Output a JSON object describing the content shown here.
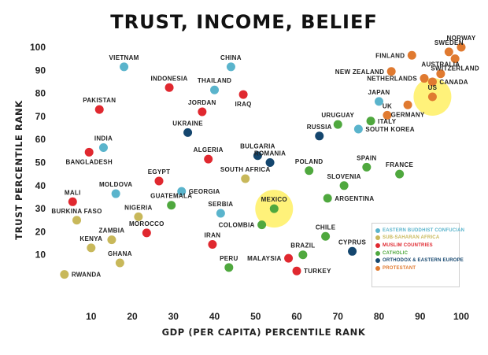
{
  "chart_data": {
    "type": "scatter",
    "title": "TRUST, INCOME, BELIEF",
    "xlabel": "GDP (PER CAPITA) PERCENTILE RANK",
    "ylabel": "TRUST PERCENTILE RANK",
    "xlim": [
      2,
      100
    ],
    "ylim": [
      0,
      100
    ],
    "xticks": [
      10,
      20,
      30,
      40,
      50,
      60,
      70,
      80,
      90,
      100
    ],
    "yticks": [
      10,
      20,
      30,
      40,
      50,
      60,
      70,
      80,
      90,
      100
    ],
    "grid": false,
    "legend_position": "bottom-right",
    "colors": {
      "buddhist_confucian": "#5ab4cc",
      "sub_saharan": "#c8b85a",
      "muslim": "#e0282f",
      "catholic": "#4fa83e",
      "orthodox": "#14466e",
      "protestant": "#e07a30",
      "highlight": "#fff27a"
    },
    "legend": [
      {
        "key": "buddhist_confucian",
        "label": "EASTERN BUDDHIST CONFUCIAN",
        "color": "#5ab4cc"
      },
      {
        "key": "sub_saharan",
        "label": "SUB-SAHARAN AFRICA",
        "color": "#c8b85a"
      },
      {
        "key": "muslim",
        "label": "MUSLIM COUNTRIES",
        "color": "#e0282f"
      },
      {
        "key": "catholic",
        "label": "CATHOLIC",
        "color": "#4fa83e"
      },
      {
        "key": "orthodox",
        "label": "ORTHODOX & EASTERN EUROPE",
        "color": "#14466e"
      },
      {
        "key": "protestant",
        "label": "PROTESTANT",
        "color": "#e07a30"
      }
    ],
    "highlights": [
      "US",
      "MEXICO"
    ],
    "points": [
      {
        "label": "VIETNAM",
        "x": 18,
        "y": 91.5,
        "group": "buddhist_confucian",
        "lpos": "above"
      },
      {
        "label": "CHINA",
        "x": 44,
        "y": 91.5,
        "group": "buddhist_confucian",
        "lpos": "above"
      },
      {
        "label": "THAILAND",
        "x": 40,
        "y": 81.5,
        "group": "buddhist_confucian",
        "lpos": "above"
      },
      {
        "label": "JAPAN",
        "x": 80,
        "y": 76.5,
        "group": "buddhist_confucian",
        "lpos": "above"
      },
      {
        "label": "SOUTH KOREA",
        "x": 75,
        "y": 64.5,
        "group": "buddhist_confucian",
        "lpos": "right"
      },
      {
        "label": "INDIA",
        "x": 13,
        "y": 56.5,
        "group": "buddhist_confucian",
        "lpos": "above"
      },
      {
        "label": "MOLDOVA",
        "x": 16,
        "y": 36.5,
        "group": "buddhist_confucian",
        "lpos": "above"
      },
      {
        "label": "GEORGIA",
        "x": 32,
        "y": 37.5,
        "group": "buddhist_confucian",
        "lpos": "right"
      },
      {
        "label": "SERBIA",
        "x": 41.5,
        "y": 28,
        "group": "buddhist_confucian",
        "lpos": "above"
      },
      {
        "label": "INDONESIA",
        "x": 29,
        "y": 82.5,
        "group": "muslim",
        "lpos": "above"
      },
      {
        "label": "IRAQ",
        "x": 47,
        "y": 79.5,
        "group": "muslim",
        "lpos": "below"
      },
      {
        "label": "PAKISTAN",
        "x": 12,
        "y": 73,
        "group": "muslim",
        "lpos": "above"
      },
      {
        "label": "JORDAN",
        "x": 37,
        "y": 72,
        "group": "muslim",
        "lpos": "above"
      },
      {
        "label": "BANGLADESH",
        "x": 9.5,
        "y": 54.5,
        "group": "muslim",
        "lpos": "below"
      },
      {
        "label": "ALGERIA",
        "x": 38.5,
        "y": 51.5,
        "group": "muslim",
        "lpos": "above"
      },
      {
        "label": "EGYPT",
        "x": 26.5,
        "y": 42,
        "group": "muslim",
        "lpos": "above"
      },
      {
        "label": "MALI",
        "x": 5.5,
        "y": 33,
        "group": "muslim",
        "lpos": "above"
      },
      {
        "label": "MOROCCO",
        "x": 23.5,
        "y": 19.5,
        "group": "muslim",
        "lpos": "above"
      },
      {
        "label": "IRAN",
        "x": 39.5,
        "y": 14.5,
        "group": "muslim",
        "lpos": "above"
      },
      {
        "label": "MALAYSIA",
        "x": 58,
        "y": 8.5,
        "group": "muslim",
        "lpos": "left"
      },
      {
        "label": "TURKEY",
        "x": 60,
        "y": 3,
        "group": "muslim",
        "lpos": "right"
      },
      {
        "label": "UKRAINE",
        "x": 33.5,
        "y": 63,
        "group": "orthodox",
        "lpos": "above"
      },
      {
        "label": "RUSSIA",
        "x": 65.5,
        "y": 61.5,
        "group": "orthodox",
        "lpos": "above"
      },
      {
        "label": "BULGARIA",
        "x": 50.5,
        "y": 53,
        "group": "orthodox",
        "lpos": "above"
      },
      {
        "label": "ROMANIA",
        "x": 53.5,
        "y": 50,
        "group": "orthodox",
        "lpos": "above"
      },
      {
        "label": "CYPRUS",
        "x": 73.5,
        "y": 11.5,
        "group": "orthodox",
        "lpos": "above"
      },
      {
        "label": "URUGUAY",
        "x": 70,
        "y": 66.5,
        "group": "catholic",
        "lpos": "above"
      },
      {
        "label": "ITALY",
        "x": 78,
        "y": 68,
        "group": "catholic",
        "lpos": "right"
      },
      {
        "label": "POLAND",
        "x": 63,
        "y": 46.5,
        "group": "catholic",
        "lpos": "above"
      },
      {
        "label": "SPAIN",
        "x": 77,
        "y": 48,
        "group": "catholic",
        "lpos": "above"
      },
      {
        "label": "FRANCE",
        "x": 85,
        "y": 45,
        "group": "catholic",
        "lpos": "above"
      },
      {
        "label": "SLOVENIA",
        "x": 71.5,
        "y": 40,
        "group": "catholic",
        "lpos": "above"
      },
      {
        "label": "ARGENTINA",
        "x": 67.5,
        "y": 34.5,
        "group": "catholic",
        "lpos": "right"
      },
      {
        "label": "GUATEMALA",
        "x": 29.5,
        "y": 31.5,
        "group": "catholic",
        "lpos": "above"
      },
      {
        "label": "MEXICO",
        "x": 54.5,
        "y": 30,
        "group": "catholic",
        "lpos": "above"
      },
      {
        "label": "COLOMBIA",
        "x": 51.5,
        "y": 23,
        "group": "catholic",
        "lpos": "left"
      },
      {
        "label": "CHILE",
        "x": 67,
        "y": 18,
        "group": "catholic",
        "lpos": "above"
      },
      {
        "label": "BRAZIL",
        "x": 61.5,
        "y": 10,
        "group": "catholic",
        "lpos": "above"
      },
      {
        "label": "PERU",
        "x": 43.5,
        "y": 4.5,
        "group": "catholic",
        "lpos": "above"
      },
      {
        "label": "SOUTH AFRICA",
        "x": 47.5,
        "y": 43,
        "group": "sub_saharan",
        "lpos": "above"
      },
      {
        "label": "NIGERIA",
        "x": 21.5,
        "y": 26.5,
        "group": "sub_saharan",
        "lpos": "above"
      },
      {
        "label": "BURKINA FASO",
        "x": 6.5,
        "y": 25,
        "group": "sub_saharan",
        "lpos": "above"
      },
      {
        "label": "ZAMBIA",
        "x": 15,
        "y": 16.5,
        "group": "sub_saharan",
        "lpos": "above"
      },
      {
        "label": "KENYA",
        "x": 10,
        "y": 13,
        "group": "sub_saharan",
        "lpos": "above"
      },
      {
        "label": "GHANA",
        "x": 17,
        "y": 6.5,
        "group": "sub_saharan",
        "lpos": "above"
      },
      {
        "label": "RWANDA",
        "x": 3.5,
        "y": 1.5,
        "group": "sub_saharan",
        "lpos": "right"
      },
      {
        "label": "NORWAY",
        "x": 100,
        "y": 100,
        "group": "protestant",
        "lpos": "above"
      },
      {
        "label": "SWEDEN",
        "x": 97,
        "y": 98,
        "group": "protestant",
        "lpos": "above"
      },
      {
        "label": "FINLAND",
        "x": 88,
        "y": 96.5,
        "group": "protestant",
        "lpos": "left"
      },
      {
        "label": "SWITZERLAND",
        "x": 98.5,
        "y": 95,
        "group": "protestant",
        "lpos": "below"
      },
      {
        "label": "NEW ZEALAND",
        "x": 83,
        "y": 89.5,
        "group": "protestant",
        "lpos": "left"
      },
      {
        "label": "AUSTRALIA",
        "x": 95,
        "y": 88.5,
        "group": "protestant",
        "lpos": "above"
      },
      {
        "label": "NETHERLANDS",
        "x": 91,
        "y": 86.5,
        "group": "protestant",
        "lpos": "left"
      },
      {
        "label": "CANADA",
        "x": 93,
        "y": 85,
        "group": "protestant",
        "lpos": "right"
      },
      {
        "label": "US",
        "x": 93,
        "y": 78.5,
        "group": "protestant",
        "lpos": "above"
      },
      {
        "label": "UK",
        "x": 82,
        "y": 70.5,
        "group": "protestant",
        "lpos": "above"
      },
      {
        "label": "GERMANY",
        "x": 87,
        "y": 75,
        "group": "protestant",
        "lpos": "below"
      }
    ]
  }
}
